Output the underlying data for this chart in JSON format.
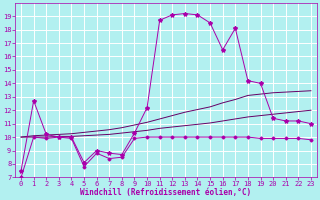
{
  "xlabel": "Windchill (Refroidissement éolien,°C)",
  "bg_color": "#b2f0f0",
  "grid_color": "#ffffff",
  "line_color": "#aa00aa",
  "dark_line": "#660066",
  "xlim": [
    -0.5,
    23.5
  ],
  "ylim": [
    7,
    20
  ],
  "xticks": [
    0,
    1,
    2,
    3,
    4,
    5,
    6,
    7,
    8,
    9,
    10,
    11,
    12,
    13,
    14,
    15,
    16,
    17,
    18,
    19,
    20,
    21,
    22,
    23
  ],
  "yticks": [
    7,
    8,
    9,
    10,
    11,
    12,
    13,
    14,
    15,
    16,
    17,
    18,
    19
  ],
  "hours": [
    0,
    1,
    2,
    3,
    4,
    5,
    6,
    7,
    8,
    9,
    10,
    11,
    12,
    13,
    14,
    15,
    16,
    17,
    18,
    19,
    20,
    21,
    22,
    23
  ],
  "temp": [
    7.5,
    12.7,
    10.2,
    10.0,
    10.0,
    8.1,
    9.0,
    8.8,
    8.7,
    10.3,
    12.2,
    18.7,
    19.1,
    19.2,
    19.1,
    18.5,
    16.5,
    18.1,
    14.2,
    14.0,
    11.4,
    11.2,
    11.2,
    11.0
  ],
  "windchill": [
    7.0,
    10.0,
    9.9,
    10.0,
    9.9,
    7.8,
    8.8,
    8.4,
    8.5,
    9.9,
    10.0,
    10.0,
    10.0,
    10.0,
    10.0,
    10.0,
    10.0,
    10.0,
    10.0,
    9.9,
    9.9,
    9.9,
    9.9,
    9.8
  ],
  "avg_line1": [
    10.0,
    10.0,
    10.0,
    10.05,
    10.05,
    10.1,
    10.15,
    10.2,
    10.3,
    10.4,
    10.5,
    10.65,
    10.75,
    10.85,
    10.95,
    11.05,
    11.2,
    11.35,
    11.5,
    11.6,
    11.7,
    11.8,
    11.9,
    12.0
  ],
  "avg_line2": [
    10.0,
    10.1,
    10.15,
    10.2,
    10.25,
    10.35,
    10.45,
    10.55,
    10.7,
    10.9,
    11.1,
    11.35,
    11.6,
    11.85,
    12.05,
    12.25,
    12.55,
    12.8,
    13.1,
    13.2,
    13.3,
    13.35,
    13.4,
    13.45
  ]
}
